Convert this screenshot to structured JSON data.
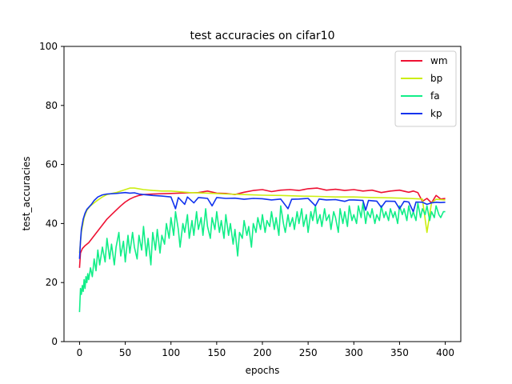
{
  "chart_data": {
    "type": "line",
    "title": "test accuracies on cifar10",
    "xlabel": "epochs",
    "ylabel": "test_accuracies",
    "xlim": [
      -17,
      417
    ],
    "ylim": [
      0,
      100
    ],
    "xticks": [
      0,
      50,
      100,
      150,
      200,
      250,
      300,
      350,
      400
    ],
    "yticks": [
      0,
      20,
      40,
      60,
      80,
      100
    ],
    "grid": false,
    "legend_position": "top-right",
    "series": [
      {
        "name": "wm",
        "color": "#ee1133",
        "points": [
          [
            0,
            25
          ],
          [
            1,
            30
          ],
          [
            3,
            31.5
          ],
          [
            6,
            32.5
          ],
          [
            10,
            33.5
          ],
          [
            15,
            35.5
          ],
          [
            20,
            37.5
          ],
          [
            25,
            39.5
          ],
          [
            30,
            41.5
          ],
          [
            35,
            43
          ],
          [
            40,
            44.5
          ],
          [
            45,
            46
          ],
          [
            50,
            47.3
          ],
          [
            55,
            48.3
          ],
          [
            60,
            49
          ],
          [
            65,
            49.5
          ],
          [
            70,
            49.8
          ],
          [
            80,
            50
          ],
          [
            100,
            50.2
          ],
          [
            120,
            50.4
          ],
          [
            130,
            50.5
          ],
          [
            140,
            51
          ],
          [
            150,
            50.3
          ],
          [
            160,
            50.2
          ],
          [
            170,
            49.8
          ],
          [
            180,
            50.6
          ],
          [
            190,
            51.2
          ],
          [
            200,
            51.5
          ],
          [
            210,
            50.8
          ],
          [
            220,
            51.3
          ],
          [
            230,
            51.5
          ],
          [
            240,
            51.2
          ],
          [
            250,
            51.8
          ],
          [
            260,
            52
          ],
          [
            270,
            51.3
          ],
          [
            280,
            51.6
          ],
          [
            290,
            51.2
          ],
          [
            300,
            51.5
          ],
          [
            310,
            51
          ],
          [
            320,
            51.3
          ],
          [
            330,
            50.5
          ],
          [
            340,
            51
          ],
          [
            350,
            51.3
          ],
          [
            360,
            50.6
          ],
          [
            365,
            51
          ],
          [
            370,
            50.5
          ],
          [
            375,
            47.5
          ],
          [
            380,
            48.5
          ],
          [
            385,
            47
          ],
          [
            390,
            49.5
          ],
          [
            395,
            48.3
          ],
          [
            400,
            48.5
          ]
        ]
      },
      {
        "name": "bp",
        "color": "#ccee11",
        "points": [
          [
            0,
            30
          ],
          [
            2,
            37
          ],
          [
            5,
            42
          ],
          [
            8,
            44.5
          ],
          [
            12,
            46
          ],
          [
            18,
            47.5
          ],
          [
            25,
            49
          ],
          [
            30,
            49.8
          ],
          [
            40,
            50.5
          ],
          [
            50,
            51.5
          ],
          [
            55,
            52
          ],
          [
            60,
            52
          ],
          [
            70,
            51.5
          ],
          [
            80,
            51.2
          ],
          [
            90,
            51
          ],
          [
            100,
            51
          ],
          [
            120,
            50.5
          ],
          [
            140,
            50.3
          ],
          [
            160,
            50
          ],
          [
            180,
            49.8
          ],
          [
            200,
            49.6
          ],
          [
            220,
            49.5
          ],
          [
            240,
            49.3
          ],
          [
            260,
            49.2
          ],
          [
            280,
            49
          ],
          [
            300,
            49
          ],
          [
            320,
            48.8
          ],
          [
            340,
            48.7
          ],
          [
            360,
            48.5
          ],
          [
            375,
            48.3
          ],
          [
            380,
            37
          ],
          [
            385,
            47
          ],
          [
            390,
            48.2
          ],
          [
            400,
            48
          ]
        ]
      },
      {
        "name": "fa",
        "color": "#11ee88",
        "points": [
          [
            0,
            10
          ],
          [
            1,
            18
          ],
          [
            2,
            16
          ],
          [
            3,
            19
          ],
          [
            4,
            17
          ],
          [
            5,
            21
          ],
          [
            6,
            18
          ],
          [
            7,
            22
          ],
          [
            8,
            20
          ],
          [
            9,
            23
          ],
          [
            10,
            21
          ],
          [
            12,
            25
          ],
          [
            14,
            22
          ],
          [
            16,
            28
          ],
          [
            18,
            24
          ],
          [
            20,
            31
          ],
          [
            22,
            26
          ],
          [
            25,
            32
          ],
          [
            28,
            27
          ],
          [
            30,
            35
          ],
          [
            33,
            28
          ],
          [
            35,
            33
          ],
          [
            38,
            26
          ],
          [
            40,
            32
          ],
          [
            43,
            37
          ],
          [
            45,
            29
          ],
          [
            48,
            34
          ],
          [
            50,
            27
          ],
          [
            53,
            36
          ],
          [
            55,
            30
          ],
          [
            58,
            37
          ],
          [
            60,
            32
          ],
          [
            63,
            28
          ],
          [
            65,
            36
          ],
          [
            68,
            31
          ],
          [
            70,
            39
          ],
          [
            73,
            29
          ],
          [
            75,
            35
          ],
          [
            78,
            26
          ],
          [
            80,
            37
          ],
          [
            83,
            31
          ],
          [
            85,
            38
          ],
          [
            88,
            30
          ],
          [
            90,
            36
          ],
          [
            93,
            33
          ],
          [
            95,
            40
          ],
          [
            98,
            35
          ],
          [
            100,
            42
          ],
          [
            103,
            36
          ],
          [
            105,
            44
          ],
          [
            108,
            38
          ],
          [
            110,
            32
          ],
          [
            113,
            40
          ],
          [
            115,
            37
          ],
          [
            118,
            43
          ],
          [
            120,
            35
          ],
          [
            123,
            41
          ],
          [
            125,
            36
          ],
          [
            128,
            44
          ],
          [
            130,
            38
          ],
          [
            133,
            42
          ],
          [
            135,
            36
          ],
          [
            138,
            45
          ],
          [
            140,
            39
          ],
          [
            143,
            35
          ],
          [
            145,
            42
          ],
          [
            148,
            38
          ],
          [
            150,
            44
          ],
          [
            153,
            37
          ],
          [
            155,
            41
          ],
          [
            158,
            35
          ],
          [
            160,
            43
          ],
          [
            163,
            36
          ],
          [
            165,
            40
          ],
          [
            168,
            33
          ],
          [
            170,
            38
          ],
          [
            173,
            29
          ],
          [
            175,
            37
          ],
          [
            178,
            35
          ],
          [
            180,
            41
          ],
          [
            183,
            36
          ],
          [
            185,
            39
          ],
          [
            188,
            32
          ],
          [
            190,
            40
          ],
          [
            193,
            37
          ],
          [
            195,
            42
          ],
          [
            198,
            38
          ],
          [
            200,
            43
          ],
          [
            203,
            37
          ],
          [
            205,
            41
          ],
          [
            208,
            39
          ],
          [
            210,
            44
          ],
          [
            213,
            38
          ],
          [
            215,
            42
          ],
          [
            218,
            36
          ],
          [
            220,
            46
          ],
          [
            223,
            40
          ],
          [
            225,
            37
          ],
          [
            228,
            43
          ],
          [
            230,
            39
          ],
          [
            233,
            42
          ],
          [
            235,
            38
          ],
          [
            238,
            44
          ],
          [
            240,
            40
          ],
          [
            243,
            45
          ],
          [
            245,
            39
          ],
          [
            248,
            43
          ],
          [
            250,
            37
          ],
          [
            253,
            44
          ],
          [
            255,
            41
          ],
          [
            258,
            46
          ],
          [
            260,
            40
          ],
          [
            263,
            43
          ],
          [
            265,
            39
          ],
          [
            268,
            45
          ],
          [
            270,
            41
          ],
          [
            273,
            43
          ],
          [
            275,
            38
          ],
          [
            278,
            44
          ],
          [
            280,
            42
          ],
          [
            283,
            37
          ],
          [
            285,
            45
          ],
          [
            288,
            40
          ],
          [
            290,
            44
          ],
          [
            293,
            39
          ],
          [
            295,
            46
          ],
          [
            298,
            41
          ],
          [
            300,
            43
          ],
          [
            303,
            40
          ],
          [
            305,
            46
          ],
          [
            308,
            42
          ],
          [
            310,
            47
          ],
          [
            313,
            40
          ],
          [
            315,
            44
          ],
          [
            318,
            42
          ],
          [
            320,
            45
          ],
          [
            323,
            40
          ],
          [
            325,
            43
          ],
          [
            328,
            41
          ],
          [
            330,
            46
          ],
          [
            333,
            42
          ],
          [
            335,
            44
          ],
          [
            338,
            41
          ],
          [
            340,
            45
          ],
          [
            343,
            42
          ],
          [
            345,
            44
          ],
          [
            348,
            40
          ],
          [
            350,
            46
          ],
          [
            353,
            43
          ],
          [
            355,
            45
          ],
          [
            358,
            41
          ],
          [
            360,
            46
          ],
          [
            363,
            42
          ],
          [
            365,
            44
          ],
          [
            368,
            41
          ],
          [
            370,
            47
          ],
          [
            373,
            42
          ],
          [
            375,
            45
          ],
          [
            378,
            43
          ],
          [
            380,
            46
          ],
          [
            383,
            41
          ],
          [
            385,
            44
          ],
          [
            388,
            42
          ],
          [
            390,
            46
          ],
          [
            393,
            43
          ],
          [
            395,
            42
          ],
          [
            398,
            44
          ],
          [
            400,
            44
          ]
        ]
      },
      {
        "name": "kp",
        "color": "#1133ee",
        "points": [
          [
            0,
            28
          ],
          [
            1,
            34
          ],
          [
            2,
            38
          ],
          [
            4,
            41.5
          ],
          [
            6,
            43.5
          ],
          [
            8,
            44.8
          ],
          [
            10,
            45.5
          ],
          [
            13,
            46.5
          ],
          [
            16,
            47.8
          ],
          [
            20,
            49
          ],
          [
            25,
            49.7
          ],
          [
            30,
            50
          ],
          [
            40,
            50.2
          ],
          [
            50,
            50.5
          ],
          [
            55,
            50.3
          ],
          [
            60,
            50.4
          ],
          [
            65,
            50
          ],
          [
            70,
            49.8
          ],
          [
            80,
            49.5
          ],
          [
            90,
            49.3
          ],
          [
            100,
            49
          ],
          [
            105,
            45
          ],
          [
            108,
            48.8
          ],
          [
            115,
            46.5
          ],
          [
            118,
            49
          ],
          [
            125,
            47
          ],
          [
            130,
            48.8
          ],
          [
            140,
            48.5
          ],
          [
            145,
            46
          ],
          [
            150,
            48.8
          ],
          [
            160,
            48.5
          ],
          [
            170,
            48.6
          ],
          [
            180,
            48.2
          ],
          [
            190,
            48.5
          ],
          [
            200,
            48.4
          ],
          [
            210,
            48
          ],
          [
            220,
            48.3
          ],
          [
            228,
            45
          ],
          [
            232,
            48.2
          ],
          [
            240,
            48.3
          ],
          [
            250,
            48.5
          ],
          [
            258,
            46
          ],
          [
            262,
            48.3
          ],
          [
            270,
            48
          ],
          [
            280,
            48.1
          ],
          [
            290,
            47.5
          ],
          [
            295,
            48
          ],
          [
            300,
            48
          ],
          [
            310,
            47.8
          ],
          [
            313,
            44.5
          ],
          [
            316,
            47.8
          ],
          [
            325,
            47.6
          ],
          [
            330,
            45.5
          ],
          [
            335,
            47.6
          ],
          [
            345,
            47.5
          ],
          [
            350,
            45
          ],
          [
            355,
            47.5
          ],
          [
            360,
            47.3
          ],
          [
            365,
            44
          ],
          [
            368,
            47.3
          ],
          [
            375,
            47.2
          ],
          [
            380,
            46.5
          ],
          [
            385,
            47
          ],
          [
            390,
            47.2
          ],
          [
            395,
            47.1
          ],
          [
            400,
            47.2
          ]
        ]
      }
    ]
  }
}
